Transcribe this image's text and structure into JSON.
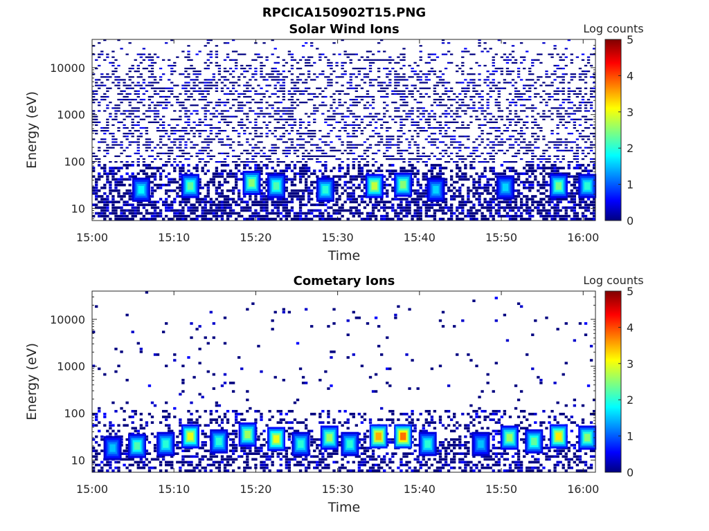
{
  "figure_title": "RPCICA150902T15.PNG",
  "colors": {
    "colormap": [
      "#000080",
      "#0000ff",
      "#00ffff",
      "#ffff00",
      "#ff0000",
      "#800000"
    ]
  },
  "chart_data": [
    {
      "type": "heatmap",
      "title": "Solar Wind Ions",
      "xlabel": "Time",
      "ylabel": "Energy (eV)",
      "x_ticks": [
        "15:00",
        "15:10",
        "15:20",
        "15:30",
        "15:40",
        "15:50",
        "16:00"
      ],
      "x_tick_minutes": [
        0,
        10,
        20,
        30,
        40,
        50,
        60
      ],
      "xlim_minutes": [
        0,
        61.5
      ],
      "y_scale": "log",
      "y_ticks": [
        "10",
        "100",
        "1000",
        "10000"
      ],
      "y_tick_values": [
        10,
        100,
        1000,
        10000
      ],
      "ylim": [
        5.5,
        40000
      ],
      "colorbar": {
        "label": "Log counts",
        "ticks": [
          "0",
          "1",
          "2",
          "3",
          "4",
          "5"
        ],
        "range": [
          0,
          5
        ]
      },
      "bright_spots": [
        {
          "minute": 6.0,
          "energy_eV": 25,
          "log_counts": 1.8
        },
        {
          "minute": 12.0,
          "energy_eV": 30,
          "log_counts": 2.3
        },
        {
          "minute": 19.5,
          "energy_eV": 35,
          "log_counts": 2.5
        },
        {
          "minute": 22.5,
          "energy_eV": 30,
          "log_counts": 2.2
        },
        {
          "minute": 28.5,
          "energy_eV": 25,
          "log_counts": 2.0
        },
        {
          "minute": 34.5,
          "energy_eV": 30,
          "log_counts": 2.8
        },
        {
          "minute": 38.0,
          "energy_eV": 32,
          "log_counts": 2.5
        },
        {
          "minute": 42.0,
          "energy_eV": 25,
          "log_counts": 1.6
        },
        {
          "minute": 50.5,
          "energy_eV": 28,
          "log_counts": 1.6
        },
        {
          "minute": 57.0,
          "energy_eV": 30,
          "log_counts": 2.4
        },
        {
          "minute": 60.5,
          "energy_eV": 30,
          "log_counts": 2.0
        }
      ]
    },
    {
      "type": "heatmap",
      "title": "Cometary Ions",
      "xlabel": "Time",
      "ylabel": "Energy (eV)",
      "x_ticks": [
        "15:00",
        "15:10",
        "15:20",
        "15:30",
        "15:40",
        "15:50",
        "16:00"
      ],
      "x_tick_minutes": [
        0,
        10,
        20,
        30,
        40,
        50,
        60
      ],
      "xlim_minutes": [
        0,
        61.5
      ],
      "y_scale": "log",
      "y_ticks": [
        "10",
        "100",
        "1000",
        "10000"
      ],
      "y_tick_values": [
        10,
        100,
        1000,
        10000
      ],
      "ylim": [
        5.5,
        40000
      ],
      "colorbar": {
        "label": "Log counts",
        "ticks": [
          "0",
          "1",
          "2",
          "3",
          "4",
          "5"
        ],
        "range": [
          0,
          5
        ]
      },
      "bright_spots": [
        {
          "minute": 2.5,
          "energy_eV": 18,
          "log_counts": 1.5
        },
        {
          "minute": 5.5,
          "energy_eV": 20,
          "log_counts": 2.2
        },
        {
          "minute": 9.0,
          "energy_eV": 22,
          "log_counts": 2.0
        },
        {
          "minute": 12.0,
          "energy_eV": 32,
          "log_counts": 3.0
        },
        {
          "minute": 15.5,
          "energy_eV": 25,
          "log_counts": 2.0
        },
        {
          "minute": 19.0,
          "energy_eV": 35,
          "log_counts": 2.6
        },
        {
          "minute": 22.5,
          "energy_eV": 28,
          "log_counts": 3.0
        },
        {
          "minute": 25.5,
          "energy_eV": 22,
          "log_counts": 2.0
        },
        {
          "minute": 29.0,
          "energy_eV": 30,
          "log_counts": 2.6
        },
        {
          "minute": 31.5,
          "energy_eV": 22,
          "log_counts": 2.0
        },
        {
          "minute": 35.0,
          "energy_eV": 32,
          "log_counts": 3.5
        },
        {
          "minute": 38.0,
          "energy_eV": 32,
          "log_counts": 3.8
        },
        {
          "minute": 41.0,
          "energy_eV": 22,
          "log_counts": 2.0
        },
        {
          "minute": 47.5,
          "energy_eV": 22,
          "log_counts": 1.5
        },
        {
          "minute": 51.0,
          "energy_eV": 30,
          "log_counts": 2.6
        },
        {
          "minute": 54.0,
          "energy_eV": 25,
          "log_counts": 2.3
        },
        {
          "minute": 57.0,
          "energy_eV": 32,
          "log_counts": 3.2
        },
        {
          "minute": 60.5,
          "energy_eV": 30,
          "log_counts": 2.5
        }
      ]
    }
  ]
}
